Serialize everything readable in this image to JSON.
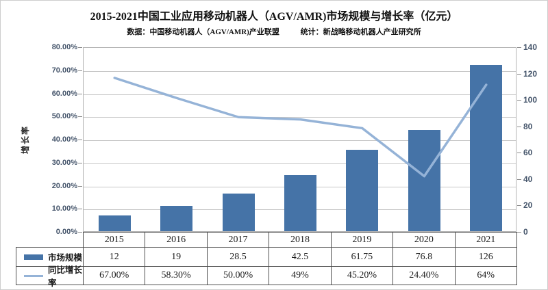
{
  "title": "2015-2021中国工业应用移动机器人（AGV/AMR)市场规模与增长率（亿元）",
  "subtitle": {
    "source": "数据：中国移动机器人（AGV/AMR)产业联盟",
    "stat": "统计：新战略移动机器人产业研究所"
  },
  "colors": {
    "bar": "#4573a7",
    "line": "#95b3d7",
    "axis_label": "#44546a",
    "gridline": "#c6c6c6",
    "table_border": "#4d4d4d"
  },
  "chart_data": {
    "type": "combo",
    "categories": [
      "2015",
      "2016",
      "2017",
      "2018",
      "2019",
      "2020",
      "2021"
    ],
    "series": [
      {
        "name": "市场规模",
        "type": "bar",
        "axis": "right",
        "values": [
          12,
          19,
          28.5,
          42.5,
          61.75,
          76.8,
          126
        ]
      },
      {
        "name": "同比增长率",
        "type": "line",
        "axis": "left",
        "values_pct": [
          67,
          58.3,
          50,
          49,
          45.2,
          24.4,
          64
        ],
        "labels": [
          "67.00%",
          "58.30%",
          "50.00%",
          "49%",
          "45.20%",
          "24.40%",
          "64%"
        ]
      }
    ],
    "left_axis": {
      "title": "增长率",
      "min": 0,
      "max": 80,
      "step": 10,
      "tick_labels": [
        "0.00%",
        "10.00%",
        "20.00%",
        "30.00%",
        "40.00%",
        "50.00%",
        "60.00%",
        "70.00%",
        "80.00%"
      ]
    },
    "right_axis": {
      "min": 0,
      "max": 140,
      "step": 20,
      "tick_labels": [
        "0",
        "20",
        "40",
        "60",
        "80",
        "100",
        "120",
        "140"
      ]
    },
    "grid": true,
    "legend_position": "table-left"
  },
  "table": {
    "header": [
      "2015",
      "2016",
      "2017",
      "2018",
      "2019",
      "2020",
      "2021"
    ],
    "rows": [
      {
        "label": "市场规模",
        "swatch": "bar",
        "values": [
          "12",
          "19",
          "28.5",
          "42.5",
          "61.75",
          "76.8",
          "126"
        ]
      },
      {
        "label": "同比增长率",
        "swatch": "line",
        "values": [
          "67.00%",
          "58.30%",
          "50.00%",
          "49%",
          "45.20%",
          "24.40%",
          "64%"
        ]
      }
    ]
  }
}
